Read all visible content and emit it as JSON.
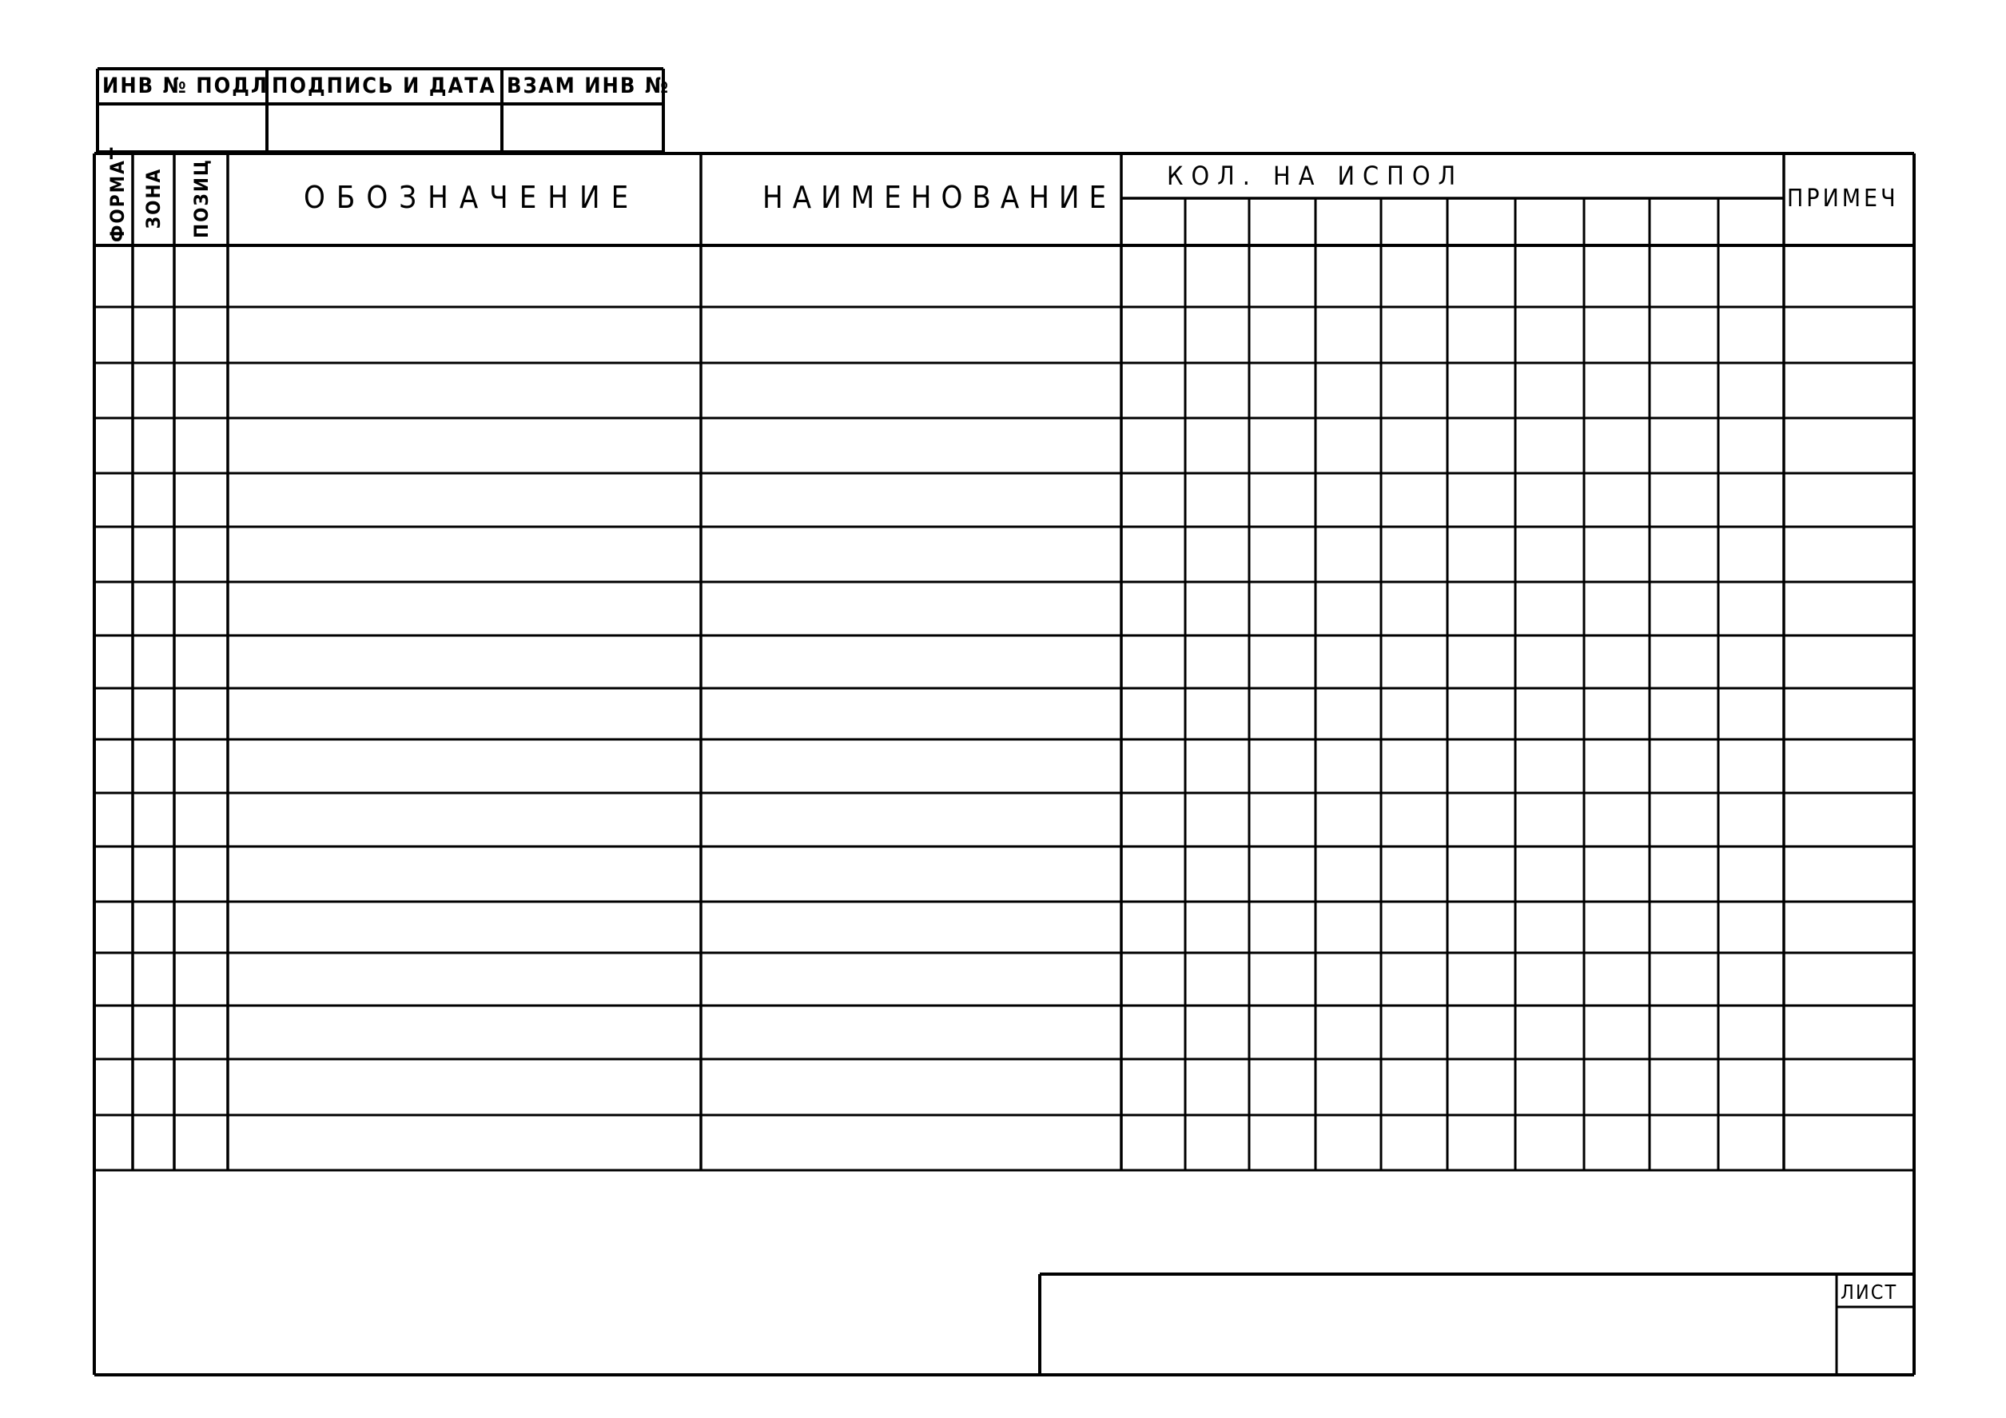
{
  "stamp": {
    "headers": [
      "ИНВ № ПОДЛ",
      "ПОДПИСЬ И ДАТА",
      "ВЗАМ ИНВ №"
    ]
  },
  "table": {
    "columns": {
      "format": "ФОРМАТ",
      "zone": "ЗОНА",
      "position": "ПОЗИЦ",
      "designation": "ОБОЗНАЧЕНИЕ",
      "name": "НАИМЕНОВАНИЕ",
      "quantity": "КОЛ. НА ИСПОЛ",
      "note": "ПРИМЕЧ"
    },
    "quantity_subcolumns": 10,
    "rows": 17
  },
  "title_block": {
    "sheet_label": "ЛИСТ"
  },
  "colors": {
    "ink": "#000000",
    "paper": "#ffffff"
  }
}
